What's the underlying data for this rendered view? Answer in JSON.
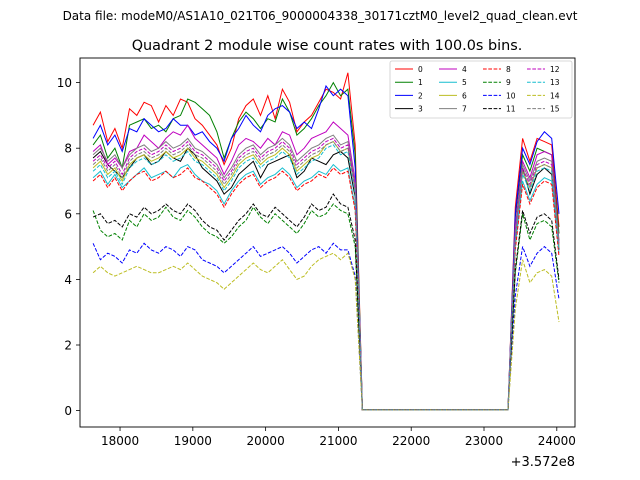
{
  "suptitle": "Data file: modeM0/AS1A10_021T06_9000004338_30171cztM0_level2_quad_clean.evt",
  "chart_data": {
    "type": "line",
    "title": "Quadrant 2 module wise count rates with 100.0s bins.",
    "xlabel": "",
    "ylabel": "",
    "x_offset_label": "+3.572e8",
    "xlim": [
      17450,
      24250
    ],
    "ylim": [
      -0.5,
      10.75
    ],
    "xticks": [
      18000,
      19000,
      20000,
      21000,
      22000,
      23000,
      24000
    ],
    "xtick_labels": [
      "18000",
      "19000",
      "20000",
      "21000",
      "22000",
      "23000",
      "24000"
    ],
    "yticks": [
      0,
      2,
      4,
      6,
      8,
      10
    ],
    "ytick_labels": [
      "0",
      "2",
      "4",
      "6",
      "8",
      "10"
    ],
    "grid": false,
    "legend_position": "top-right",
    "legend_columns": 4,
    "x_segments": [
      {
        "start": 17630,
        "step": 100,
        "count": 37
      },
      {
        "start": 23330,
        "step": 100,
        "count": 8
      }
    ],
    "series": [
      {
        "name": "0",
        "color": "#ff0000",
        "dash": "solid",
        "seg1": [
          8.7,
          9.1,
          8.2,
          8.6,
          8.0,
          9.2,
          9.0,
          9.4,
          9.3,
          8.8,
          9.3,
          9.0,
          9.5,
          9.4,
          8.9,
          8.7,
          8.4,
          8.1,
          7.5,
          8.0,
          8.9,
          9.3,
          9.5,
          9.0,
          9.6,
          8.9,
          9.8,
          9.4,
          8.5,
          8.8,
          9.0,
          9.4,
          9.8,
          9.7,
          9.5,
          10.3,
          8.1
        ],
        "seg2": [
          0.02,
          6.2,
          8.3,
          7.6,
          8.3,
          8.2,
          8.1,
          5.6
        ]
      },
      {
        "name": "1",
        "color": "#008000",
        "dash": "solid",
        "seg1": [
          8.1,
          8.4,
          7.7,
          8.0,
          7.4,
          8.7,
          8.8,
          8.9,
          8.6,
          8.7,
          8.5,
          8.9,
          9.0,
          9.5,
          9.4,
          9.2,
          9.0,
          8.5,
          7.7,
          8.3,
          8.8,
          9.1,
          8.9,
          8.6,
          8.9,
          8.8,
          9.5,
          9.1,
          8.4,
          8.6,
          8.9,
          9.3,
          9.6,
          10.0,
          9.6,
          9.8,
          7.8
        ],
        "seg2": [
          0.02,
          5.9,
          7.8,
          7.3,
          8.0,
          7.9,
          7.8,
          5.4
        ]
      },
      {
        "name": "2",
        "color": "#0000ff",
        "dash": "solid",
        "seg1": [
          8.3,
          8.7,
          8.1,
          8.4,
          7.9,
          8.6,
          8.5,
          8.9,
          8.7,
          8.5,
          8.6,
          8.9,
          8.7,
          8.7,
          8.4,
          8.5,
          8.2,
          8.0,
          7.6,
          8.3,
          8.6,
          9.0,
          8.7,
          8.5,
          9.0,
          9.2,
          9.3,
          9.1,
          8.6,
          8.8,
          8.6,
          9.2,
          9.9,
          9.6,
          9.8,
          9.6,
          7.4
        ],
        "seg2": [
          0.02,
          6.0,
          8.0,
          7.5,
          8.2,
          8.5,
          8.3,
          6.0
        ]
      },
      {
        "name": "3",
        "color": "#000000",
        "dash": "solid",
        "seg1": [
          7.7,
          7.9,
          7.5,
          7.3,
          7.1,
          7.4,
          7.7,
          7.8,
          7.5,
          7.6,
          7.9,
          7.7,
          7.6,
          8.0,
          7.8,
          7.4,
          7.2,
          7.0,
          6.6,
          6.8,
          7.2,
          7.4,
          7.6,
          7.1,
          7.5,
          7.6,
          7.7,
          7.8,
          7.1,
          7.3,
          7.7,
          7.6,
          7.5,
          7.8,
          7.9,
          7.7,
          6.5
        ],
        "seg2": [
          0.02,
          5.2,
          7.4,
          6.6,
          7.2,
          7.4,
          7.2,
          4.9
        ]
      },
      {
        "name": "4",
        "color": "#bf00bf",
        "dash": "solid",
        "seg1": [
          7.9,
          8.1,
          7.5,
          7.7,
          7.4,
          7.9,
          8.0,
          8.4,
          8.2,
          8.0,
          8.3,
          8.5,
          8.4,
          8.7,
          8.3,
          8.1,
          7.9,
          7.7,
          7.2,
          7.6,
          8.1,
          8.3,
          8.2,
          8.0,
          8.3,
          8.1,
          8.5,
          8.4,
          7.8,
          8.0,
          8.3,
          8.4,
          8.5,
          8.8,
          8.6,
          8.4,
          7.0
        ],
        "seg2": [
          0.02,
          5.6,
          7.6,
          7.1,
          7.8,
          7.9,
          7.8,
          5.1
        ]
      },
      {
        "name": "5",
        "color": "#17becf",
        "dash": "solid",
        "seg1": [
          7.1,
          7.3,
          6.9,
          7.2,
          6.8,
          7.0,
          7.2,
          7.4,
          7.1,
          7.2,
          7.3,
          7.1,
          7.4,
          7.5,
          7.2,
          7.0,
          6.9,
          6.7,
          6.3,
          6.7,
          7.0,
          7.2,
          7.3,
          6.9,
          7.1,
          7.2,
          7.4,
          7.2,
          6.8,
          7.0,
          7.1,
          7.3,
          7.2,
          7.5,
          7.3,
          7.4,
          6.2
        ],
        "seg2": [
          0.02,
          5.0,
          7.0,
          6.4,
          6.9,
          7.1,
          7.0,
          4.8
        ]
      },
      {
        "name": "6",
        "color": "#bcbd22",
        "dash": "solid",
        "seg1": [
          7.4,
          7.6,
          7.2,
          7.4,
          7.0,
          7.5,
          7.7,
          7.8,
          7.6,
          7.7,
          7.9,
          7.7,
          7.8,
          8.0,
          7.7,
          7.6,
          7.4,
          7.2,
          6.8,
          7.1,
          7.5,
          7.7,
          7.8,
          7.5,
          7.7,
          7.8,
          8.0,
          7.8,
          7.3,
          7.5,
          7.7,
          7.8,
          8.1,
          8.2,
          7.9,
          8.0,
          6.7
        ],
        "seg2": [
          0.02,
          5.3,
          7.3,
          6.8,
          7.4,
          7.5,
          7.4,
          5.0
        ]
      },
      {
        "name": "7",
        "color": "#7f7f7f",
        "dash": "solid",
        "seg1": [
          7.8,
          8.0,
          7.6,
          7.8,
          7.4,
          7.8,
          8.0,
          8.1,
          7.9,
          8.0,
          8.2,
          8.0,
          8.1,
          8.3,
          8.0,
          7.9,
          7.7,
          7.5,
          7.1,
          7.4,
          7.8,
          8.0,
          8.1,
          7.8,
          8.0,
          8.1,
          8.3,
          8.1,
          7.6,
          7.8,
          8.0,
          8.1,
          8.3,
          8.4,
          8.1,
          8.2,
          6.9
        ],
        "seg2": [
          0.02,
          5.5,
          7.5,
          7.0,
          7.6,
          7.7,
          7.6,
          5.2
        ]
      },
      {
        "name": "8",
        "color": "#ff0000",
        "dash": "dashed",
        "seg1": [
          7.0,
          7.2,
          6.8,
          7.1,
          6.7,
          7.0,
          7.2,
          7.3,
          7.0,
          7.1,
          7.3,
          7.1,
          7.2,
          7.4,
          7.1,
          7.0,
          6.8,
          6.6,
          6.2,
          6.6,
          6.9,
          7.1,
          7.2,
          6.8,
          7.0,
          7.1,
          7.3,
          7.1,
          6.7,
          6.9,
          7.0,
          7.2,
          7.1,
          7.4,
          7.2,
          7.3,
          6.1
        ],
        "seg2": [
          0.02,
          4.9,
          6.9,
          6.3,
          6.8,
          7.0,
          6.9,
          4.7
        ]
      },
      {
        "name": "9",
        "color": "#008000",
        "dash": "dashed",
        "seg1": [
          6.1,
          5.5,
          5.3,
          5.4,
          5.2,
          5.8,
          5.6,
          6.0,
          5.8,
          5.9,
          6.2,
          5.9,
          5.8,
          6.1,
          5.9,
          5.6,
          5.4,
          5.3,
          5.1,
          5.3,
          5.6,
          5.8,
          6.2,
          5.9,
          5.7,
          6.0,
          5.8,
          5.6,
          5.4,
          5.7,
          6.1,
          5.9,
          6.0,
          6.3,
          6.1,
          6.0,
          5.0
        ],
        "seg2": [
          0.02,
          4.2,
          6.0,
          5.2,
          5.7,
          5.8,
          5.6,
          3.9
        ]
      },
      {
        "name": "10",
        "color": "#0000ff",
        "dash": "dashed",
        "seg1": [
          5.1,
          4.6,
          4.8,
          4.7,
          4.5,
          4.9,
          4.8,
          5.1,
          4.9,
          4.8,
          5.0,
          4.9,
          4.7,
          5.0,
          4.9,
          4.6,
          4.5,
          4.4,
          4.2,
          4.4,
          4.6,
          4.8,
          5.0,
          4.7,
          4.8,
          4.9,
          5.0,
          4.8,
          4.5,
          4.7,
          4.9,
          5.0,
          4.8,
          5.1,
          4.9,
          4.9,
          4.1
        ],
        "seg2": [
          0.02,
          3.5,
          5.0,
          4.4,
          4.8,
          5.0,
          4.8,
          3.4
        ]
      },
      {
        "name": "11",
        "color": "#000000",
        "dash": "dashed",
        "seg1": [
          5.9,
          6.0,
          5.7,
          5.8,
          5.6,
          6.0,
          5.9,
          6.2,
          6.0,
          6.1,
          6.3,
          6.1,
          6.0,
          6.3,
          6.1,
          5.8,
          5.6,
          5.5,
          5.2,
          5.5,
          5.8,
          6.0,
          6.3,
          6.0,
          5.9,
          6.2,
          6.0,
          5.8,
          5.6,
          5.9,
          6.3,
          6.1,
          6.2,
          6.6,
          6.3,
          6.2,
          5.2
        ],
        "seg2": [
          0.02,
          4.3,
          6.1,
          5.4,
          5.9,
          6.0,
          5.8,
          4.0
        ]
      },
      {
        "name": "12",
        "color": "#bf00bf",
        "dash": "dashed",
        "seg1": [
          7.6,
          7.8,
          7.4,
          7.6,
          7.2,
          7.7,
          7.9,
          8.0,
          7.8,
          7.9,
          8.1,
          7.9,
          8.0,
          8.2,
          7.9,
          7.8,
          7.6,
          7.4,
          7.0,
          7.3,
          7.7,
          7.9,
          8.0,
          7.7,
          7.9,
          8.0,
          8.2,
          8.0,
          7.5,
          7.7,
          7.9,
          8.0,
          8.2,
          8.3,
          8.0,
          8.1,
          6.8
        ],
        "seg2": [
          0.02,
          5.4,
          7.4,
          6.9,
          7.5,
          7.6,
          7.5,
          5.1
        ]
      },
      {
        "name": "13",
        "color": "#17becf",
        "dash": "dashed",
        "seg1": [
          7.3,
          7.5,
          7.1,
          7.3,
          6.9,
          7.4,
          7.6,
          7.7,
          7.5,
          7.6,
          7.8,
          7.6,
          7.7,
          7.9,
          7.6,
          7.5,
          7.3,
          7.1,
          6.7,
          7.0,
          7.4,
          7.6,
          7.7,
          7.4,
          7.6,
          7.7,
          7.9,
          7.7,
          7.2,
          7.4,
          7.6,
          7.7,
          8.0,
          8.1,
          7.8,
          7.9,
          6.6
        ],
        "seg2": [
          0.02,
          5.2,
          7.2,
          6.7,
          7.3,
          7.4,
          7.3,
          4.9
        ]
      },
      {
        "name": "14",
        "color": "#bcbd22",
        "dash": "dashed",
        "seg1": [
          4.2,
          4.4,
          4.2,
          4.1,
          4.2,
          4.3,
          4.4,
          4.3,
          4.2,
          4.2,
          4.3,
          4.4,
          4.3,
          4.5,
          4.3,
          4.1,
          4.0,
          3.9,
          3.7,
          3.9,
          4.1,
          4.3,
          4.5,
          4.3,
          4.2,
          4.4,
          4.6,
          4.3,
          4.0,
          4.1,
          4.4,
          4.6,
          4.7,
          4.8,
          4.6,
          4.8,
          4.0
        ],
        "seg2": [
          0.02,
          3.1,
          4.6,
          3.9,
          4.2,
          4.3,
          4.1,
          2.7
        ]
      },
      {
        "name": "15",
        "color": "#7f7f7f",
        "dash": "dashed",
        "seg1": [
          7.5,
          7.7,
          7.3,
          7.5,
          7.1,
          7.6,
          7.8,
          7.9,
          7.7,
          7.8,
          8.0,
          7.8,
          7.9,
          8.1,
          7.8,
          7.7,
          7.5,
          7.3,
          6.9,
          7.2,
          7.6,
          7.8,
          7.9,
          7.6,
          7.8,
          7.9,
          8.1,
          7.9,
          7.4,
          7.6,
          7.8,
          7.9,
          8.1,
          8.2,
          7.9,
          8.0,
          6.7
        ],
        "seg2": [
          0.02,
          5.3,
          7.3,
          6.8,
          7.4,
          7.5,
          7.4,
          5.0
        ]
      }
    ]
  }
}
